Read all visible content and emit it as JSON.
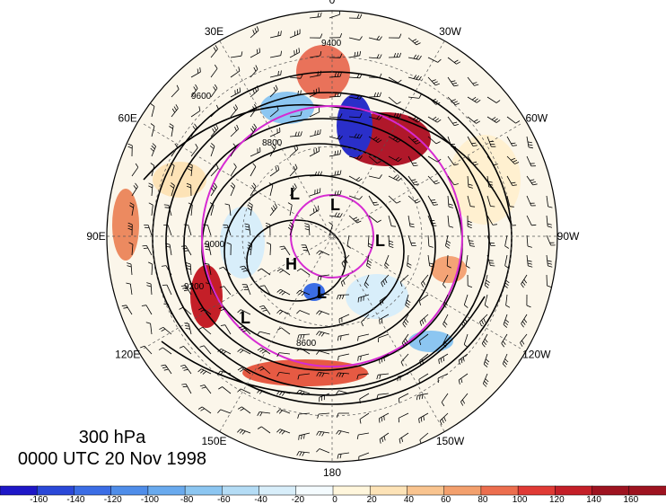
{
  "title": {
    "level": "300 hPa",
    "time": "0000 UTC 20 Nov 1998"
  },
  "longitude_labels": [
    {
      "deg": 0,
      "text": "0"
    },
    {
      "deg": 30,
      "text": "30W"
    },
    {
      "deg": 60,
      "text": "60W"
    },
    {
      "deg": 90,
      "text": "90W"
    },
    {
      "deg": 120,
      "text": "120W"
    },
    {
      "deg": 150,
      "text": "150W"
    },
    {
      "deg": 180,
      "text": "180"
    },
    {
      "deg": 210,
      "text": "150E"
    },
    {
      "deg": 240,
      "text": "120E"
    },
    {
      "deg": 270,
      "text": "90E"
    },
    {
      "deg": 300,
      "text": "60E"
    },
    {
      "deg": 330,
      "text": "30E"
    }
  ],
  "contour_labels": [
    "9400",
    "9600",
    "8600",
    "8800",
    "9200",
    "9000"
  ],
  "pressure_systems": [
    "L",
    "L",
    "L",
    "L",
    "H",
    "L"
  ],
  "colorbar": {
    "ticks": [
      "-160",
      "-140",
      "-120",
      "-100",
      "-80",
      "-60",
      "-40",
      "-20",
      "0",
      "20",
      "40",
      "60",
      "80",
      "100",
      "120",
      "140",
      "160"
    ],
    "colors": [
      "#1e17c7",
      "#2a48d8",
      "#3b6de5",
      "#4f8de9",
      "#69aaee",
      "#8cc6f1",
      "#b4dcf5",
      "#d8eefa",
      "#f4fbfe",
      "#fff6dc",
      "#fde3b7",
      "#f9c48f",
      "#f3a06d",
      "#ec6e4e",
      "#e03a35",
      "#c41f28",
      "#9e1320"
    ]
  }
}
